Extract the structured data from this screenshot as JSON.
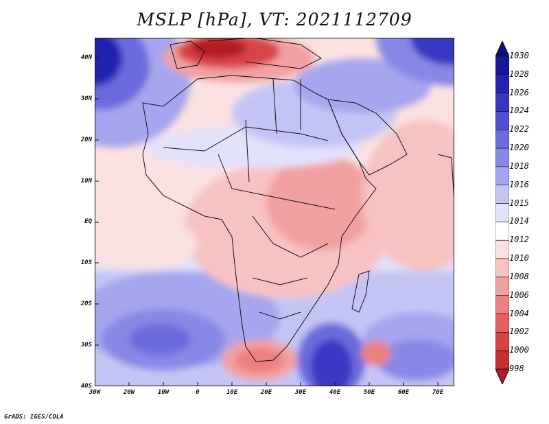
{
  "title": "MSLP [hPa], VT: 2021112709",
  "credit": "GrADS: IGES/COLA",
  "lat_labels": [
    "40N",
    "30N",
    "20N",
    "10N",
    "EQ",
    "10S",
    "20S",
    "30S",
    "40S"
  ],
  "lon_labels": [
    "30W",
    "20W",
    "10W",
    "0",
    "10E",
    "20E",
    "30E",
    "40E",
    "50E",
    "60E",
    "70E"
  ],
  "colorbar": {
    "levels": [
      "998",
      "1000",
      "1002",
      "1004",
      "1006",
      "1008",
      "1010",
      "1012",
      "1014",
      "1015",
      "1016",
      "1018",
      "1020",
      "1022",
      "1024",
      "1026",
      "1028",
      "1030"
    ],
    "colors": [
      "#b11d24",
      "#c52f30",
      "#d84446",
      "#e55f5f",
      "#ec7f7f",
      "#f2a1a1",
      "#f7c2c2",
      "#fbe1e1",
      "#ffffff",
      "#e2e2fb",
      "#c4c4f4",
      "#a6a6ee",
      "#8888e6",
      "#6b6bdc",
      "#5050d0",
      "#3737c2",
      "#2323b0",
      "#17179a",
      "#0d0d80"
    ]
  },
  "map": {
    "domain_lon": [
      -30,
      75
    ],
    "domain_lat": [
      -40,
      44
    ],
    "variable": "Mean sea level pressure (hPa)"
  }
}
